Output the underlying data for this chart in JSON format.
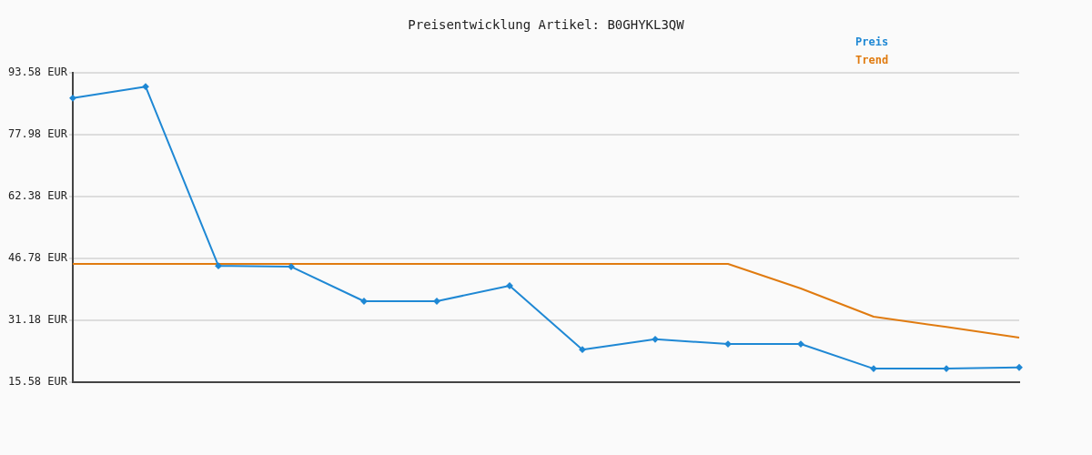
{
  "chart_data": {
    "type": "line",
    "title": "Preisentwicklung Artikel: B0GHYKL3QW",
    "categories": [
      null,
      null,
      null,
      null,
      null,
      null,
      null,
      null,
      null,
      null,
      null,
      null,
      null,
      null
    ],
    "series": [
      {
        "name": "Preis",
        "color": "#1f88d4",
        "marker": "diamond",
        "values": [
          87.2,
          90.1,
          44.9,
          44.7,
          36.0,
          36.0,
          39.9,
          23.8,
          26.4,
          25.2,
          25.2,
          19.0,
          19.0,
          19.3
        ]
      },
      {
        "name": "Trend",
        "color": "#e07b10",
        "marker": "none",
        "values": [
          45.4,
          45.4,
          45.4,
          45.4,
          45.4,
          45.4,
          45.4,
          45.4,
          45.4,
          45.4,
          39.2,
          32.1,
          29.5,
          26.8
        ]
      }
    ],
    "ylim": [
      15.58,
      93.58
    ],
    "yticks": [
      {
        "value": 15.58,
        "label": "15.58 EUR"
      },
      {
        "value": 31.18,
        "label": "31.18 EUR"
      },
      {
        "value": 46.78,
        "label": "46.78 EUR"
      },
      {
        "value": 62.38,
        "label": "62.38 EUR"
      },
      {
        "value": 77.98,
        "label": "77.98 EUR"
      },
      {
        "value": 93.58,
        "label": "93.58 EUR"
      }
    ],
    "grid": "y",
    "legend": "top right",
    "line_style": "solid"
  }
}
